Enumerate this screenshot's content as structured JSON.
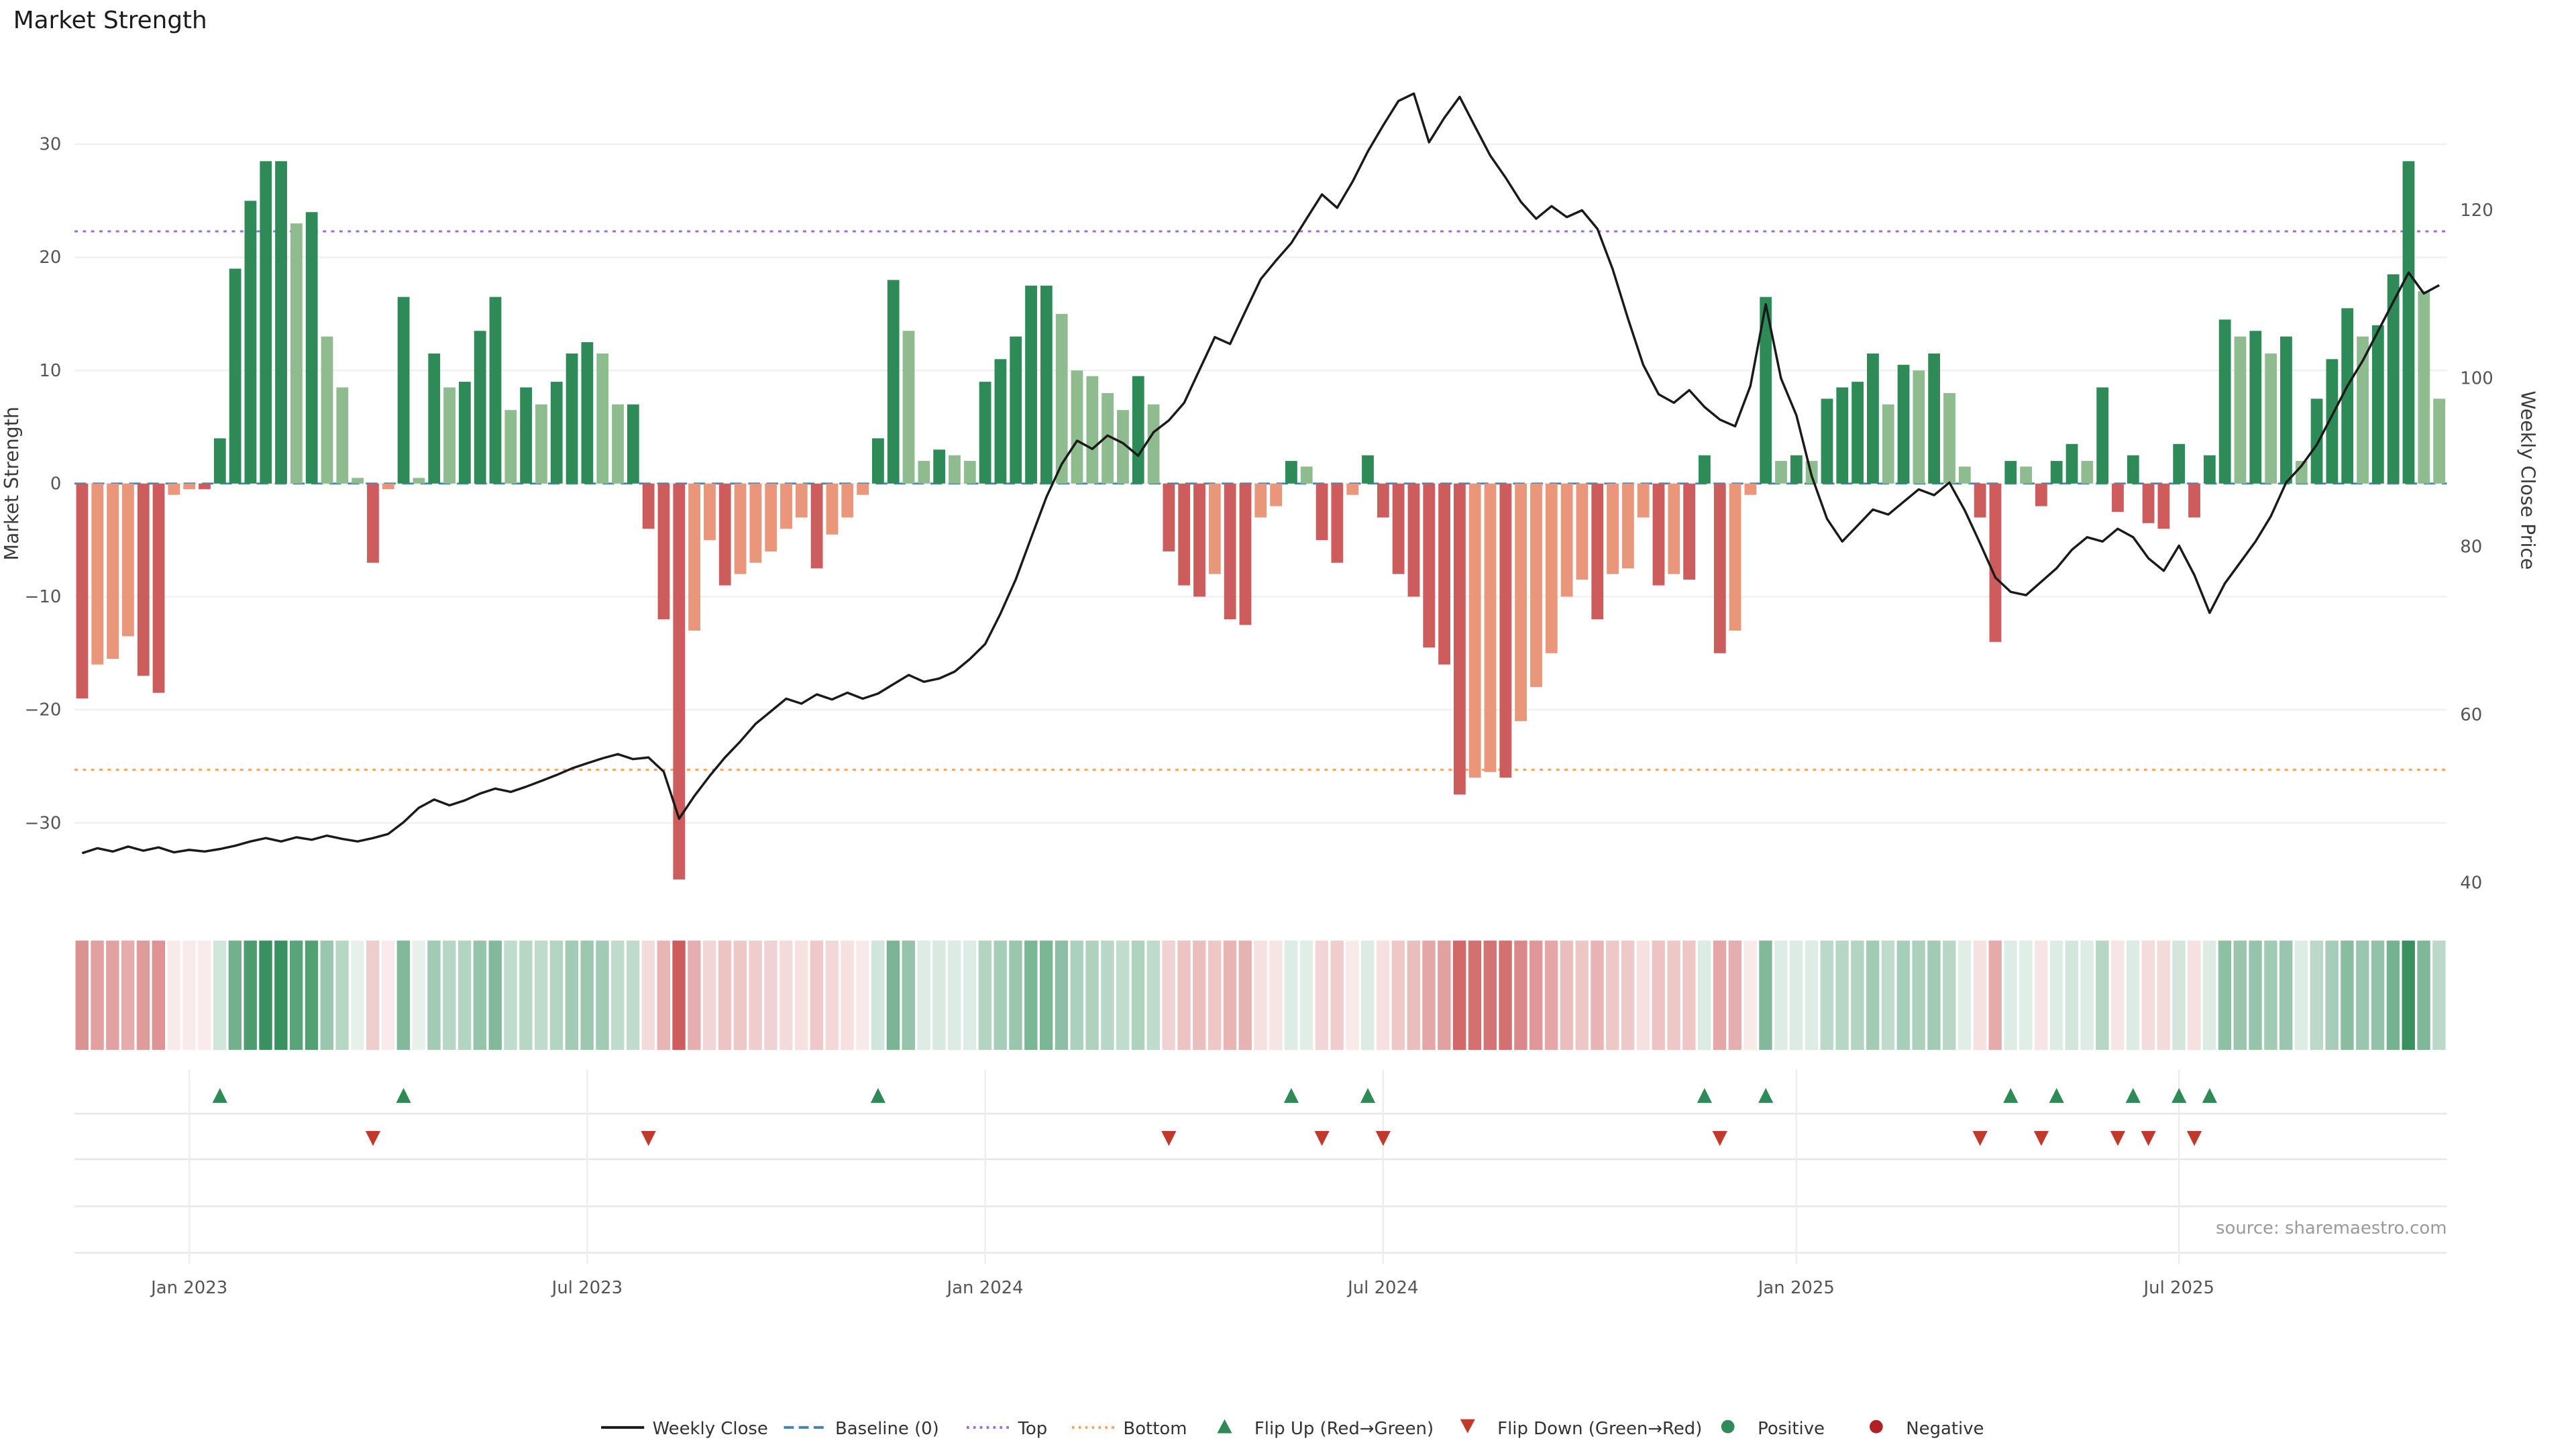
{
  "title": "Market Strength",
  "source": "source: sharemaestro.com",
  "axes": {
    "left_label": "Market Strength",
    "right_label": "Weekly Close Price",
    "left_ticks": [
      30,
      20,
      10,
      0,
      -10,
      -20,
      -30
    ],
    "right_ticks": [
      120,
      100,
      80,
      60,
      40
    ],
    "x_ticks": [
      {
        "label": "Jan 2023",
        "week": 7
      },
      {
        "label": "Jul 2023",
        "week": 33
      },
      {
        "label": "Jan 2024",
        "week": 59
      },
      {
        "label": "Jul 2024",
        "week": 85
      },
      {
        "label": "Jan 2025",
        "week": 112
      },
      {
        "label": "Jul 2025",
        "week": 137
      }
    ]
  },
  "colors": {
    "positive_dark": "#2e8b57",
    "positive_light": "#8fbc8f",
    "negative_dark": "#cd5c5c",
    "negative_light": "#e9967a",
    "price_line": "#1a1a1a",
    "baseline": "#4682b4",
    "top_line": "#9370db",
    "bottom_line": "#f4a460",
    "flip_up": "#2e8b57",
    "flip_down": "#c0392b",
    "grid": "#f0f0f0",
    "panel_rule": "#e7e7e7"
  },
  "chart_data": {
    "type": "combo bar+line with heatmap strip and flip markers",
    "title": "Market Strength",
    "xlabel": "",
    "ylabel_left": "Market Strength",
    "ylabel_right": "Weekly Close Price",
    "x_start_date": "2022-11-14",
    "x_interval": "weekly",
    "left_range": [
      -38,
      34
    ],
    "right_range": [
      40,
      137
    ],
    "grid": "faint horizontal",
    "legend_position": "bottom center",
    "reference_lines": {
      "baseline": 0,
      "top": 22.3,
      "bottom": -25.3
    },
    "series": [
      {
        "name": "Market Strength",
        "type": "bar",
        "axis": "left",
        "values": [
          -19,
          -16,
          -15.5,
          -13.5,
          -17,
          -18.5,
          -1,
          -0.5,
          -0.5,
          4,
          19,
          25,
          28.5,
          28.5,
          23,
          24,
          13,
          8.5,
          0.5,
          -7,
          -0.5,
          16.5,
          0.5,
          11.5,
          8.5,
          9,
          13.5,
          16.5,
          6.5,
          8.5,
          7,
          9,
          11.5,
          12.5,
          11.5,
          7,
          7,
          -4,
          -12,
          -35,
          -13,
          -5,
          -9,
          -8,
          -7,
          -6,
          -4,
          -3,
          -7.5,
          -4.5,
          -3,
          -1,
          4,
          18,
          13.5,
          2,
          3,
          2.5,
          2,
          9,
          11,
          13,
          17.5,
          17.5,
          15,
          10,
          9.5,
          8,
          6.5,
          9.5,
          7,
          -6,
          -9,
          -10,
          -8,
          -12,
          -12.5,
          -3,
          -2,
          2,
          1.5,
          -5,
          -7,
          -1,
          2.5,
          -3,
          -8,
          -10,
          -14.5,
          -16,
          -27.5,
          -26,
          -25.5,
          -26,
          -21,
          -18,
          -15,
          -10,
          -8.5,
          -12,
          -8,
          -7.5,
          -3,
          -9,
          -8,
          -8.5,
          2.5,
          -15,
          -13,
          -1,
          16.5,
          2,
          2.5,
          2,
          7.5,
          8.5,
          9,
          11.5,
          7,
          10.5,
          10,
          11.5,
          8,
          1.5,
          -3,
          -14,
          2,
          1.5,
          -2,
          2,
          3.5,
          2,
          8.5,
          -2.5,
          2.5,
          -3.5,
          -4,
          3.5,
          -3,
          2.5,
          14.5,
          13,
          13.5,
          11.5,
          13,
          2,
          7.5,
          11,
          15.5,
          13,
          14,
          18.5,
          28.5,
          17,
          7.5
        ]
      },
      {
        "name": "Weekly Close",
        "type": "line",
        "axis": "right",
        "values": [
          43.5,
          44.1,
          43.7,
          44.3,
          43.8,
          44.2,
          43.6,
          43.9,
          43.7,
          44.0,
          44.4,
          44.9,
          45.3,
          44.9,
          45.4,
          45.1,
          45.6,
          45.2,
          44.9,
          45.3,
          45.8,
          47.2,
          48.9,
          49.9,
          49.2,
          49.8,
          50.6,
          51.2,
          50.8,
          51.4,
          52.1,
          52.8,
          53.6,
          54.2,
          54.8,
          55.3,
          54.7,
          54.9,
          53.2,
          47.6,
          50.3,
          52.7,
          54.9,
          56.8,
          58.9,
          60.4,
          61.9,
          61.3,
          62.4,
          61.8,
          62.6,
          61.9,
          62.5,
          63.6,
          64.7,
          63.9,
          64.3,
          65.1,
          66.6,
          68.4,
          72.0,
          76.1,
          81.0,
          85.9,
          89.8,
          92.6,
          91.6,
          93.2,
          92.3,
          90.8,
          93.6,
          95.0,
          97.1,
          101.0,
          104.9,
          104.1,
          108.0,
          111.8,
          114.0,
          116.1,
          119.0,
          121.9,
          120.3,
          123.4,
          127.0,
          130.1,
          133.0,
          133.9,
          128.1,
          131.0,
          133.5,
          130.0,
          126.5,
          123.9,
          121.0,
          119.0,
          120.5,
          119.2,
          120.0,
          117.8,
          113.0,
          107.1,
          101.6,
          98.1,
          97.1,
          98.6,
          96.6,
          95.1,
          94.3,
          99.1,
          108.8,
          100.0,
          95.6,
          88.4,
          83.3,
          80.6,
          82.5,
          84.4,
          83.8,
          85.3,
          86.8,
          86.1,
          87.6,
          84.3,
          80.4,
          76.3,
          74.6,
          74.2,
          75.8,
          77.4,
          79.6,
          81.1,
          80.6,
          82.1,
          81.1,
          78.6,
          77.1,
          80.1,
          76.6,
          72.1,
          75.6,
          78.1,
          80.6,
          83.6,
          87.6,
          89.6,
          92.1,
          95.6,
          99.1,
          102.1,
          105.6,
          109.1,
          112.6,
          110.1,
          111.1
        ]
      }
    ],
    "flip_rule": "marker where bar sign changes and |new value| >= 2"
  },
  "legend": [
    {
      "id": "weekly-close",
      "label": "Weekly Close",
      "swatch": "solid-line",
      "color": "#1a1a1a"
    },
    {
      "id": "baseline",
      "label": "Baseline (0)",
      "swatch": "dashed-line",
      "color": "#4682b4"
    },
    {
      "id": "top",
      "label": "Top",
      "swatch": "dotted-line",
      "color": "#9370db"
    },
    {
      "id": "bottom",
      "label": "Bottom",
      "swatch": "dotted-line",
      "color": "#f4a460"
    },
    {
      "id": "flip-up",
      "label": "Flip Up (Red→Green)",
      "swatch": "triangle-up",
      "color": "#2e8b57"
    },
    {
      "id": "flip-down",
      "label": "Flip Down (Green→Red)",
      "swatch": "triangle-down",
      "color": "#c0392b"
    },
    {
      "id": "positive",
      "label": "Positive",
      "swatch": "circle",
      "color": "#2e8b57"
    },
    {
      "id": "negative",
      "label": "Negative",
      "swatch": "circle",
      "color": "#b22222"
    }
  ]
}
